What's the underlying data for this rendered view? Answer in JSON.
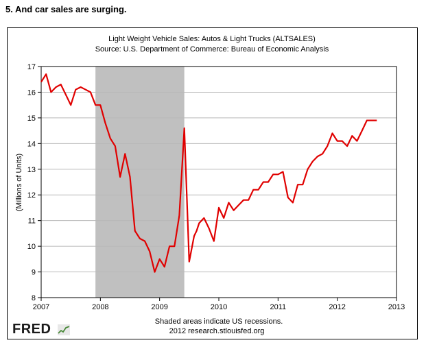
{
  "heading": "5. And car sales are surging.",
  "footer": {
    "note": "Shaded areas indicate US recessions.",
    "credit": "2012 research.stlouisfed.org",
    "logo": "FRED"
  },
  "chart_data": {
    "type": "line",
    "title": "Light Weight Vehicle Sales: Autos & Light Trucks (ALTSALES)",
    "subtitle": "Source: U.S. Department of Commerce: Bureau of Economic Analysis",
    "ylabel": "(Millions of Units)",
    "xlabel": "",
    "xlim": [
      2007.0,
      2013.0
    ],
    "ylim": [
      8,
      17
    ],
    "xticks": [
      "2007",
      "2008",
      "2009",
      "2010",
      "2011",
      "2012",
      "2013"
    ],
    "yticks": [
      "8",
      "9",
      "10",
      "11",
      "12",
      "13",
      "14",
      "15",
      "16",
      "17"
    ],
    "grid": true,
    "line_color": "#e00000",
    "recession_color": "#c0c0c0",
    "recessions": [
      [
        2007.917,
        2009.417
      ]
    ],
    "series": [
      {
        "x": [
          2007.0,
          2007.083,
          2007.167,
          2007.25,
          2007.333,
          2007.417,
          2007.5,
          2007.583,
          2007.667,
          2007.75,
          2007.833,
          2007.917,
          2008.0,
          2008.083,
          2008.167,
          2008.25,
          2008.333,
          2008.417,
          2008.5,
          2008.583,
          2008.667,
          2008.75,
          2008.833,
          2008.917,
          2009.0,
          2009.083,
          2009.167,
          2009.25,
          2009.333,
          2009.417,
          2009.5,
          2009.583,
          2009.625,
          2009.667,
          2009.75,
          2009.833,
          2009.917,
          2010.0,
          2010.083,
          2010.167,
          2010.25,
          2010.333,
          2010.417,
          2010.5,
          2010.583,
          2010.667,
          2010.75,
          2010.833,
          2010.917,
          2011.0,
          2011.083,
          2011.167,
          2011.25,
          2011.333,
          2011.417,
          2011.5,
          2011.583,
          2011.667,
          2011.75,
          2011.833,
          2011.917,
          2012.0,
          2012.083,
          2012.167,
          2012.25,
          2012.333,
          2012.417,
          2012.5,
          2012.583,
          2012.667
        ],
        "values": [
          16.4,
          16.7,
          16.0,
          16.2,
          16.3,
          15.9,
          15.5,
          16.1,
          16.2,
          16.1,
          16.0,
          15.5,
          15.5,
          14.8,
          14.2,
          13.9,
          12.7,
          13.6,
          12.7,
          10.6,
          10.3,
          10.2,
          9.8,
          9.0,
          9.5,
          9.2,
          10.0,
          10.0,
          11.2,
          14.6,
          9.4,
          10.4,
          10.6,
          10.9,
          11.1,
          10.7,
          10.2,
          11.5,
          11.1,
          11.7,
          11.4,
          11.6,
          11.8,
          11.8,
          12.2,
          12.2,
          12.5,
          12.5,
          12.8,
          12.8,
          12.9,
          11.9,
          11.7,
          12.4,
          12.4,
          13.0,
          13.3,
          13.5,
          13.6,
          13.9,
          14.4,
          14.1,
          14.1,
          13.9,
          14.3,
          14.1,
          14.5,
          14.9,
          14.9,
          14.9
        ]
      }
    ]
  }
}
